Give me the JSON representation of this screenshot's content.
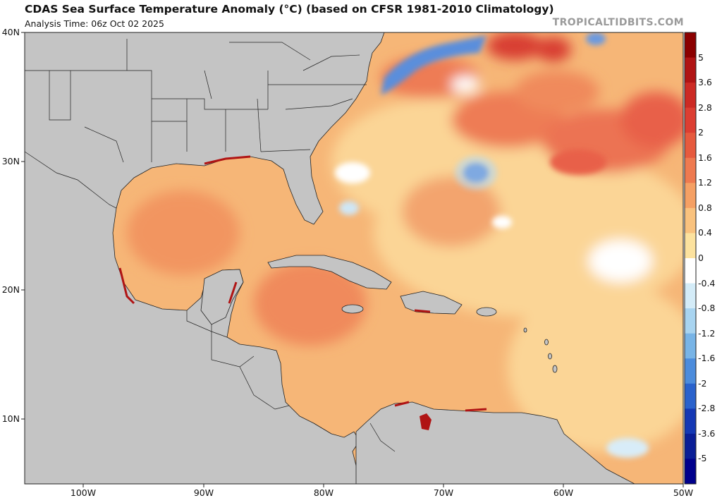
{
  "header": {
    "title": "CDAS Sea Surface Temperature Anomaly (°C) (based on CFSR 1981-2010 Climatology)",
    "analysis_time": "Analysis Time: 06z Oct 02 2025",
    "brand": "TROPICALTIDBITS.COM"
  },
  "map": {
    "lat_labels": [
      {
        "id": "40n",
        "text": "40N"
      },
      {
        "id": "30n",
        "text": "30N"
      },
      {
        "id": "20n",
        "text": "20N"
      },
      {
        "id": "10n",
        "text": "10N"
      }
    ],
    "lon_labels": [
      {
        "id": "100w",
        "text": "100W"
      },
      {
        "id": "90w",
        "text": "90W"
      },
      {
        "id": "80w",
        "text": "80W"
      },
      {
        "id": "70w",
        "text": "70W"
      },
      {
        "id": "60w",
        "text": "60W"
      },
      {
        "id": "50w",
        "text": "50W"
      }
    ],
    "land_color": "#c4c4c4",
    "border_color": "#222222"
  },
  "colorbar": {
    "labels": [
      "5",
      "3.6",
      "2.8",
      "2",
      "1.6",
      "1.2",
      "0.8",
      "0.4",
      "0",
      "-0.4",
      "-0.8",
      "-1.2",
      "-1.6",
      "-2",
      "-2.8",
      "-3.6",
      "-5"
    ],
    "colors": [
      "#8b0000",
      "#b01414",
      "#cc2a24",
      "#dc3e32",
      "#e65a3e",
      "#ee7a50",
      "#f5a064",
      "#f9c27e",
      "#fce29e",
      "#ffffff",
      "#d4ecf8",
      "#a8d4f0",
      "#78b4e6",
      "#4c8cdc",
      "#2a62cc",
      "#1438b4",
      "#0a1e96",
      "#00008c"
    ]
  }
}
